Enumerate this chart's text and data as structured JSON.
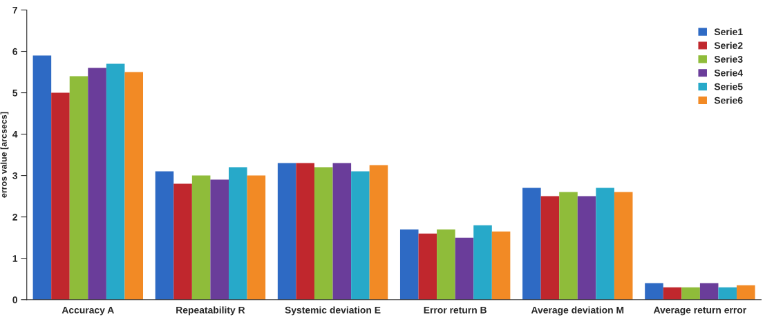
{
  "chart_data": {
    "type": "bar",
    "ylabel": "erros value [arcsecs]",
    "categories": [
      "Accuracy A",
      "Repeatability R",
      "Systemic deviation E",
      "Error return B",
      "Average deviation M",
      "Average return error"
    ],
    "series": [
      {
        "name": "Serie1",
        "color": "#2e6ac4",
        "values": [
          5.9,
          3.1,
          3.3,
          1.7,
          2.7,
          0.4
        ]
      },
      {
        "name": "Serie2",
        "color": "#c0272d",
        "values": [
          5.0,
          2.8,
          3.3,
          1.6,
          2.5,
          0.3
        ]
      },
      {
        "name": "Serie3",
        "color": "#8fbc3a",
        "values": [
          5.4,
          3.0,
          3.2,
          1.7,
          2.6,
          0.3
        ]
      },
      {
        "name": "Serie4",
        "color": "#6a3d9a",
        "values": [
          5.6,
          2.9,
          3.3,
          1.5,
          2.5,
          0.4
        ]
      },
      {
        "name": "Serie5",
        "color": "#27a9c9",
        "values": [
          5.7,
          3.2,
          3.1,
          1.8,
          2.7,
          0.3
        ]
      },
      {
        "name": "Serie6",
        "color": "#f28a25",
        "values": [
          5.5,
          3.0,
          3.25,
          1.65,
          2.6,
          0.35
        ]
      }
    ],
    "ylim": [
      0,
      7
    ],
    "yticks": [
      0,
      1,
      2,
      3,
      4,
      5,
      6,
      7
    ],
    "grid": false,
    "legend": "top right"
  }
}
